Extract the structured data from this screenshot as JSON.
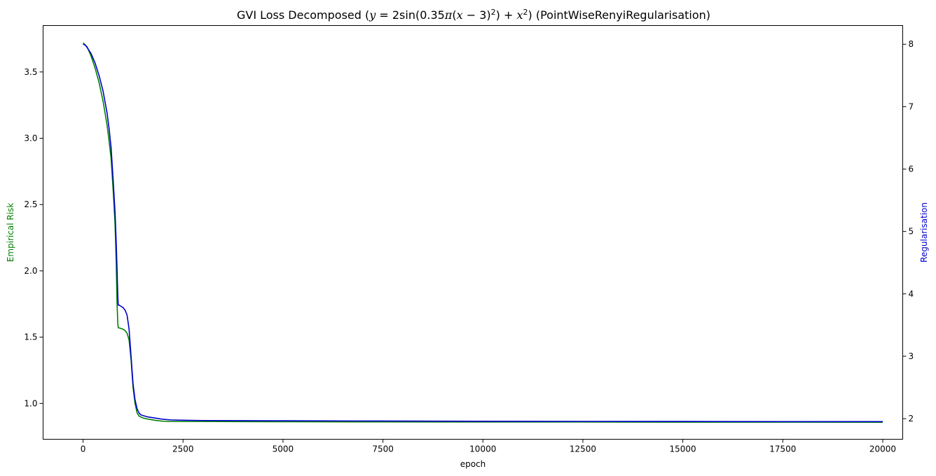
{
  "chart_data": {
    "type": "line",
    "title": "GVI Loss Decomposed (y = 2sin(0.35π(x − 3)²) + x²) (PointWiseRenyiRegularisation)",
    "title_parts": {
      "prefix": "GVI Loss Decomposed (",
      "math_y": "y",
      "math_eq": " = 2sin(0.35",
      "math_pi": "π",
      "math_open": "(",
      "math_x1": "x",
      "math_minus": " − 3)",
      "math_sup1": "2",
      "math_close": ") + ",
      "math_x2": "x",
      "math_sup2": "2",
      "suffix": ") (PointWiseRenyiRegularisation)"
    },
    "xlabel": "epoch",
    "ylabel_left": "Empirical Risk",
    "ylabel_right": "Regularisation",
    "xlim": [
      -1000,
      20500
    ],
    "ylim_left": [
      0.73,
      3.85
    ],
    "ylim_right": [
      1.67,
      8.3
    ],
    "x_ticks": [
      0,
      2500,
      5000,
      7500,
      10000,
      12500,
      15000,
      17500,
      20000
    ],
    "x_tick_labels": [
      "0",
      "2500",
      "5000",
      "7500",
      "10000",
      "12500",
      "15000",
      "17500",
      "20000"
    ],
    "y_left_ticks": [
      1.0,
      1.5,
      2.0,
      2.5,
      3.0,
      3.5
    ],
    "y_left_tick_labels": [
      "1.0",
      "1.5",
      "2.0",
      "2.5",
      "3.0",
      "3.5"
    ],
    "y_right_ticks": [
      2,
      3,
      4,
      5,
      6,
      7,
      8
    ],
    "y_right_tick_labels": [
      "2",
      "3",
      "4",
      "5",
      "6",
      "7",
      "8"
    ],
    "grid": false,
    "colors": {
      "empirical": "#008000",
      "regularisation": "#0000cd",
      "left_label": "#008000",
      "right_label": "#0000cd"
    },
    "series": [
      {
        "axis": "left",
        "color": "#008000",
        "x": [
          0,
          100,
          200,
          300,
          400,
          500,
          600,
          650,
          700,
          750,
          800,
          830,
          850,
          870,
          880,
          900,
          950,
          1000,
          1050,
          1100,
          1150,
          1200,
          1250,
          1300,
          1350,
          1400,
          1500,
          1600,
          1800,
          2000,
          2200,
          2500,
          3000,
          4000,
          5000,
          7500,
          10000,
          12500,
          15000,
          17500,
          20000
        ],
        "y": [
          3.72,
          3.69,
          3.62,
          3.53,
          3.42,
          3.28,
          3.1,
          2.98,
          2.85,
          2.62,
          2.35,
          2.05,
          1.75,
          1.6,
          1.57,
          1.57,
          1.565,
          1.56,
          1.55,
          1.53,
          1.48,
          1.33,
          1.12,
          1.0,
          0.93,
          0.905,
          0.89,
          0.883,
          0.873,
          0.866,
          0.864,
          0.864,
          0.864,
          0.863,
          0.862,
          0.861,
          0.86,
          0.86,
          0.859,
          0.859,
          0.858
        ]
      },
      {
        "axis": "right",
        "color": "#0000cd",
        "x": [
          0,
          50,
          100,
          200,
          300,
          400,
          500,
          600,
          650,
          700,
          750,
          800,
          830,
          850,
          860,
          870,
          880,
          900,
          950,
          1000,
          1050,
          1100,
          1150,
          1200,
          1250,
          1300,
          1350,
          1400,
          1450,
          1500,
          1600,
          1800,
          2000,
          2200,
          2500,
          3000,
          4000,
          5000,
          7500,
          10000,
          12500,
          15000,
          17500,
          20000
        ],
        "y": [
          8.0,
          7.99,
          7.95,
          7.85,
          7.7,
          7.5,
          7.25,
          6.9,
          6.65,
          6.35,
          5.85,
          5.3,
          4.8,
          4.4,
          4.15,
          3.95,
          3.82,
          3.82,
          3.8,
          3.78,
          3.74,
          3.66,
          3.44,
          3.0,
          2.56,
          2.3,
          2.16,
          2.09,
          2.06,
          2.05,
          2.03,
          2.01,
          1.99,
          1.98,
          1.975,
          1.97,
          1.968,
          1.966,
          1.962,
          1.958,
          1.956,
          1.955,
          1.953,
          1.952
        ]
      }
    ]
  }
}
